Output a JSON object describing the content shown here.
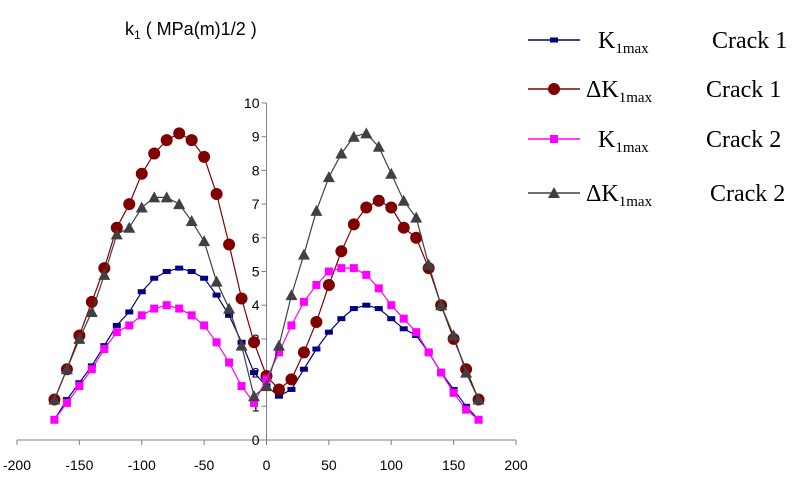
{
  "chart_data": {
    "type": "line",
    "ylabel_parts": [
      "k",
      "1",
      " ( MPa(m)1/2 )"
    ],
    "xlim": [
      -200,
      200
    ],
    "ylim": [
      0,
      10
    ],
    "x_ticks": [
      "-200",
      "-150",
      "-100",
      "-50",
      "0",
      "50",
      "100",
      "150",
      "200"
    ],
    "y_ticks": [
      "0",
      "1",
      "2",
      "3",
      "4",
      "5",
      "6",
      "7",
      "8",
      "9",
      "10"
    ],
    "grid": false,
    "legend_position": "top-right",
    "series": [
      {
        "legend_prefix": "K",
        "legend_sub": "1max",
        "legend_suffix": "Crack 1",
        "color": "#000080",
        "marker": "dash",
        "x": [
          -170,
          -160,
          -150,
          -140,
          -130,
          -120,
          -110,
          -100,
          -90,
          -80,
          -70,
          -60,
          -50,
          -40,
          -30,
          -20,
          -10,
          0,
          10,
          20,
          30,
          40,
          50,
          60,
          70,
          80,
          90,
          100,
          110,
          120,
          130,
          140,
          150,
          160,
          170
        ],
        "values": [
          0.6,
          1.2,
          1.7,
          2.2,
          2.8,
          3.4,
          3.8,
          4.4,
          4.8,
          5.0,
          5.1,
          5.0,
          4.8,
          4.3,
          3.7,
          2.9,
          2.0,
          1.6,
          1.3,
          1.5,
          2.1,
          2.7,
          3.2,
          3.6,
          3.9,
          4.0,
          3.9,
          3.6,
          3.3,
          3.1,
          2.6,
          2.0,
          1.5,
          1.0,
          0.6
        ]
      },
      {
        "legend_prefix": "ΔK",
        "legend_sub": "1max",
        "legend_suffix": "Crack 1",
        "color": "#800000",
        "marker": "circle",
        "x": [
          -170,
          -160,
          -150,
          -140,
          -130,
          -120,
          -110,
          -100,
          -90,
          -80,
          -70,
          -60,
          -50,
          -40,
          -30,
          -20,
          -10,
          0,
          10,
          20,
          30,
          40,
          50,
          60,
          70,
          80,
          90,
          100,
          110,
          120,
          130,
          140,
          150,
          160,
          170
        ],
        "values": [
          1.2,
          2.1,
          3.1,
          4.1,
          5.1,
          6.3,
          7.0,
          7.9,
          8.5,
          8.9,
          9.1,
          8.9,
          8.4,
          7.3,
          5.8,
          4.2,
          2.9,
          1.9,
          1.5,
          1.8,
          2.6,
          3.5,
          4.6,
          5.6,
          6.4,
          6.9,
          7.1,
          6.9,
          6.3,
          6.0,
          5.1,
          4.0,
          3.0,
          2.1,
          1.2
        ]
      },
      {
        "legend_prefix": "K",
        "legend_sub": "1max",
        "legend_suffix": "Crack 2",
        "color": "#ff00ff",
        "marker": "square",
        "x": [
          -170,
          -160,
          -150,
          -140,
          -130,
          -120,
          -110,
          -100,
          -90,
          -80,
          -70,
          -60,
          -50,
          -40,
          -30,
          -20,
          -10,
          0,
          10,
          20,
          30,
          40,
          50,
          60,
          70,
          80,
          90,
          100,
          110,
          120,
          130,
          140,
          150,
          160,
          170
        ],
        "values": [
          0.6,
          1.1,
          1.6,
          2.1,
          2.7,
          3.2,
          3.4,
          3.7,
          3.9,
          4.0,
          3.9,
          3.7,
          3.4,
          2.9,
          2.3,
          1.6,
          1.1,
          1.8,
          2.6,
          3.4,
          4.1,
          4.6,
          5.0,
          5.1,
          5.1,
          4.9,
          4.5,
          4.0,
          3.6,
          3.2,
          2.6,
          2.0,
          1.4,
          0.9,
          0.6
        ]
      },
      {
        "legend_prefix": "ΔK",
        "legend_sub": "1max",
        "legend_suffix": "Crack 2",
        "color": "#404040",
        "marker": "triangle",
        "x": [
          -170,
          -160,
          -150,
          -140,
          -130,
          -120,
          -110,
          -100,
          -90,
          -80,
          -70,
          -60,
          -50,
          -40,
          -30,
          -20,
          -10,
          0,
          10,
          20,
          30,
          40,
          50,
          60,
          70,
          80,
          90,
          100,
          110,
          120,
          130,
          140,
          150,
          160,
          170
        ],
        "values": [
          1.2,
          2.1,
          3.0,
          3.8,
          4.9,
          6.1,
          6.3,
          6.9,
          7.2,
          7.2,
          7.0,
          6.5,
          5.9,
          4.7,
          3.9,
          2.8,
          1.3,
          1.6,
          2.8,
          4.3,
          5.5,
          6.8,
          7.8,
          8.5,
          9.0,
          9.1,
          8.7,
          7.9,
          7.1,
          6.6,
          5.2,
          4.0,
          3.1,
          2.0,
          1.2
        ]
      }
    ]
  }
}
